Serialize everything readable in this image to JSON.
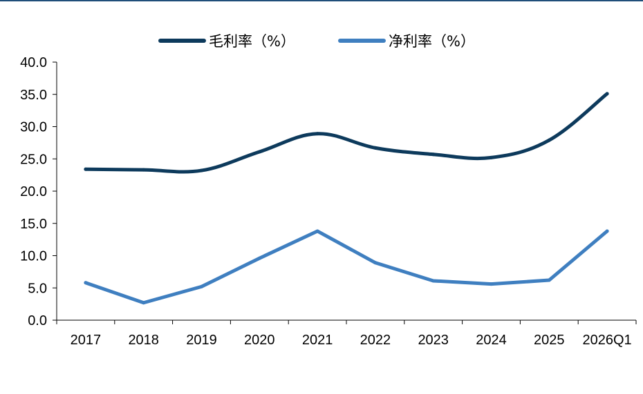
{
  "chart_data": {
    "type": "line",
    "categories": [
      "2017",
      "2018",
      "2019",
      "2020",
      "2021",
      "2022",
      "2023",
      "2024",
      "2025",
      "2026Q1"
    ],
    "series": [
      {
        "name": "毛利率（%）",
        "color": "#0d3a5c",
        "smooth": true,
        "values": [
          23.4,
          23.3,
          23.2,
          26.1,
          28.9,
          26.7,
          25.7,
          25.2,
          27.9,
          35.1
        ]
      },
      {
        "name": "净利率（%）",
        "color": "#3f7fc0",
        "smooth": false,
        "values": [
          5.8,
          2.7,
          5.2,
          9.6,
          13.8,
          8.9,
          6.1,
          5.6,
          6.2,
          13.8
        ]
      }
    ],
    "y_ticks": [
      "0.0",
      "5.0",
      "10.0",
      "15.0",
      "20.0",
      "25.0",
      "30.0",
      "35.0",
      "40.0"
    ],
    "ylim": [
      0,
      40
    ],
    "grid": false,
    "legend_position": "top-center"
  }
}
